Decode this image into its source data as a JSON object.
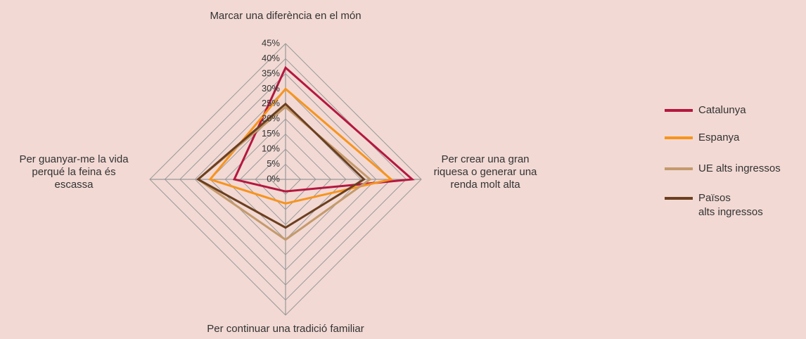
{
  "chart_data": {
    "type": "radar",
    "categories": [
      "Marcar una diferència en el món",
      "Per crear una gran\nriquesa o generar una\nrenda molt alta",
      "Per continuar una tradició familiar",
      "Per guanyar-me la vida\nperqué la feina és\nescassa"
    ],
    "series": [
      {
        "name": "Catalunya",
        "color": "#b5173f",
        "values": [
          37,
          42,
          4,
          17
        ]
      },
      {
        "name": "Espanya",
        "color": "#f7941d",
        "values": [
          30,
          35,
          8,
          25
        ]
      },
      {
        "name": "UE alts ingressos",
        "color": "#c49a6c",
        "values": [
          24,
          28,
          20,
          29
        ]
      },
      {
        "name": "Països\nalts ingressos",
        "color": "#6b3f1f",
        "values": [
          25,
          26,
          16,
          29
        ]
      }
    ],
    "ylim": [
      0,
      45
    ],
    "yticks": [
      {
        "value": 0,
        "label": "0%"
      },
      {
        "value": 5,
        "label": "5%"
      },
      {
        "value": 10,
        "label": "10%"
      },
      {
        "value": 15,
        "label": "15%"
      },
      {
        "value": 20,
        "label": "20%"
      },
      {
        "value": 25,
        "label": "25%"
      },
      {
        "value": 30,
        "label": "30%"
      },
      {
        "value": 35,
        "label": "35%"
      },
      {
        "value": 40,
        "label": "40%"
      },
      {
        "value": 45,
        "label": "45%"
      }
    ],
    "grid": true
  }
}
